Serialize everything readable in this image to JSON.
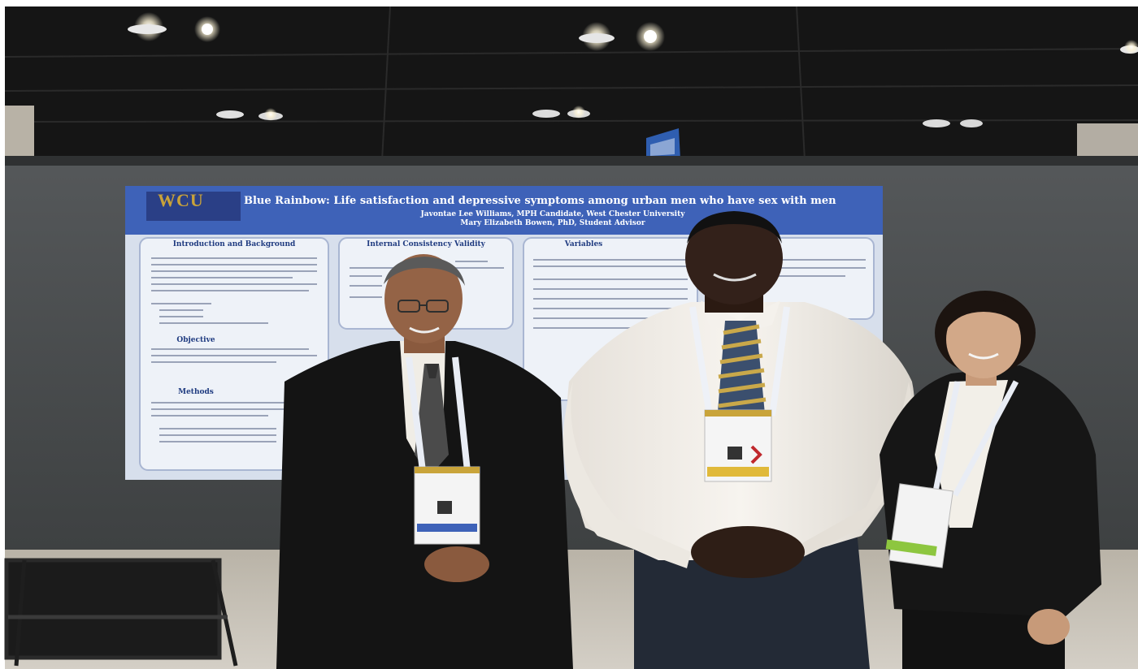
{
  "photo": {
    "description_free": true,
    "poster": {
      "logo_text": "WCU",
      "title": "Blue Rainbow: Life satisfaction  and depressive symptoms among urban men who have sex with men",
      "authors_line1": "Javontae Lee Williams, MPH Candidate, West Chester University",
      "authors_line2": "Mary Elizabeth Bowen, PhD, Student Advisor",
      "section_headings": [
        "Introduction and Background",
        "Internal Consistency Validity",
        "Variables",
        "Objective",
        "Methods"
      ]
    },
    "colors": {
      "ceiling": "#141414",
      "board": "#4a4c4b",
      "poster_header": "#3f62b5",
      "poster_body": "#dce3ef",
      "floor": "#c7c2b8"
    }
  }
}
